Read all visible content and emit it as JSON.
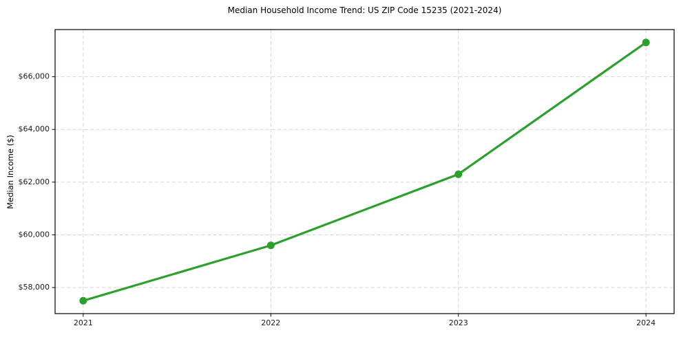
{
  "chart_data": {
    "type": "line",
    "title": "Median Household Income Trend: US ZIP Code 15235 (2021-2024)",
    "xlabel": "",
    "ylabel": "Median Income ($)",
    "x": [
      2021,
      2022,
      2023,
      2024
    ],
    "series": [
      {
        "name": "Median Household Income",
        "values": [
          57500,
          59600,
          62300,
          67300
        ]
      }
    ],
    "xtick_labels": [
      "2021",
      "2022",
      "2023",
      "2024"
    ],
    "yticks": [
      58000,
      60000,
      62000,
      64000,
      66000
    ],
    "ytick_labels": [
      "$58,000",
      "$60,000",
      "$62,000",
      "$64,000",
      "$66,000"
    ],
    "xlim": [
      2020.85,
      2024.15
    ],
    "ylim": [
      57010,
      67790
    ],
    "grid": true,
    "grid_style": "dashed",
    "legend": "none",
    "colors": {
      "line": "#2ca02c",
      "marker": "#2ca02c",
      "grid": "#d4d4d4",
      "spine": "#000000",
      "tick": "#000000",
      "tick_label": "#1a1a1a",
      "background": "#ffffff"
    }
  }
}
